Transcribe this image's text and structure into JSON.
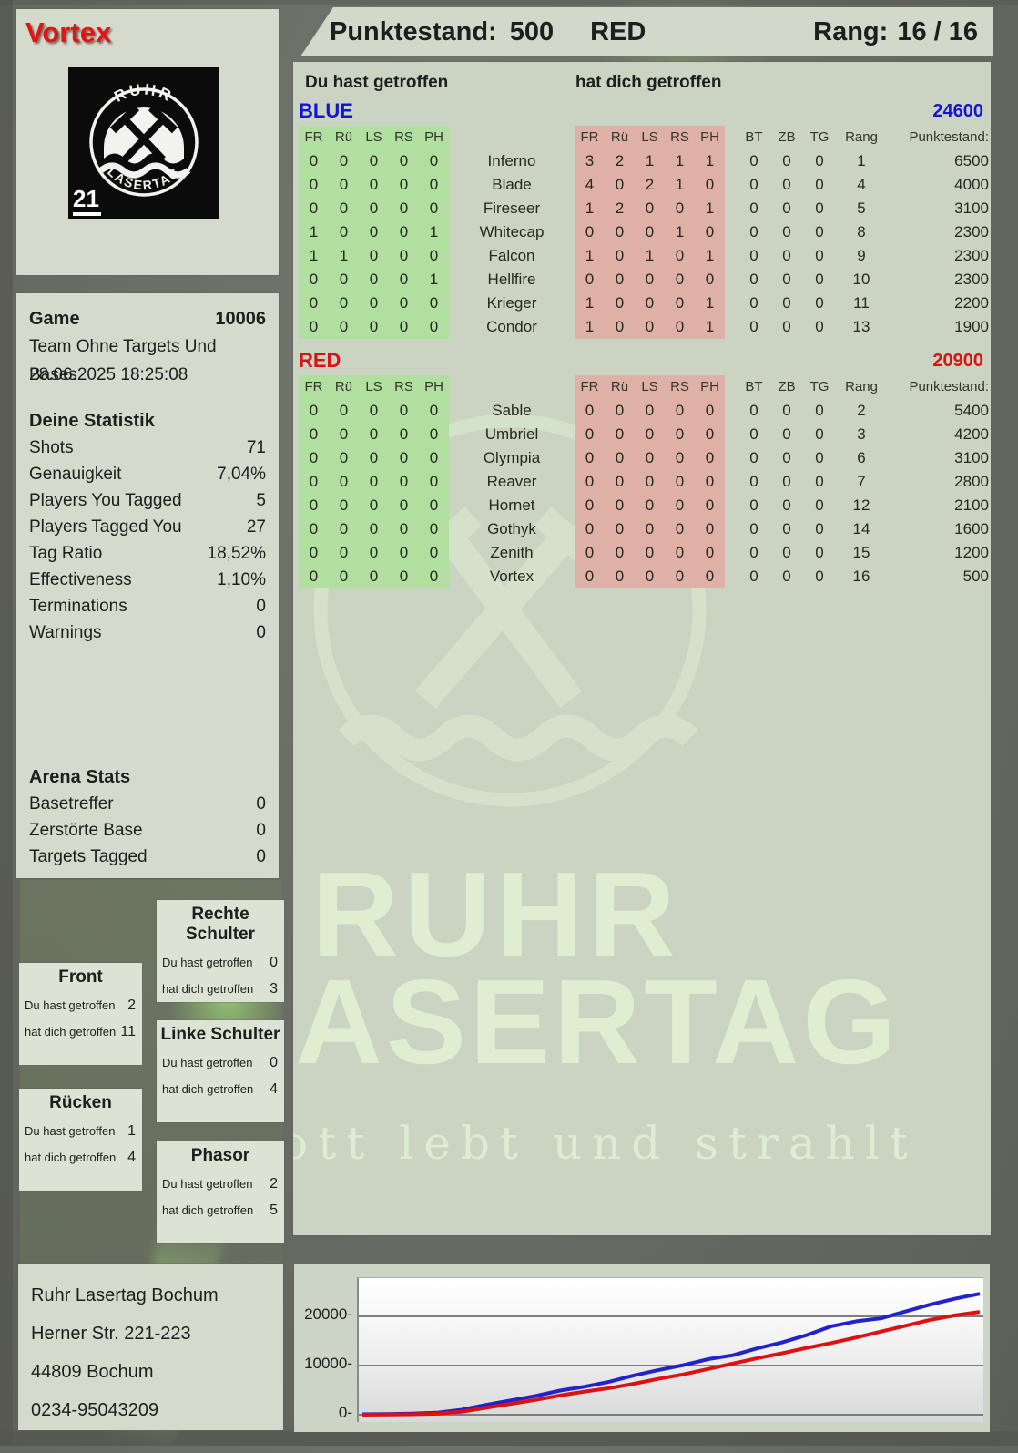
{
  "player": {
    "name": "Vortex",
    "badge": "21",
    "logo": {
      "top_text": "RUHR",
      "bottom_text": "LASERTAG"
    }
  },
  "header": {
    "score_label": "Punktestand:",
    "score_value": "500",
    "team": "RED",
    "rank_label": "Rang:",
    "rank_value": "16 / 16"
  },
  "scoreboard": {
    "you_hit_label": "Du hast getroffen",
    "hit_you_label": "hat dich getroffen",
    "hit_columns": [
      "FR",
      "Rü",
      "LS",
      "RS",
      "PH"
    ],
    "extra_columns": [
      "BT",
      "ZB",
      "TG",
      "Rang",
      "Punktestand:"
    ],
    "teams": [
      {
        "name": "BLUE",
        "color": "#1414d6",
        "total": "24600",
        "rows": [
          {
            "player": "Inferno",
            "you_hit": [
              0,
              0,
              0,
              0,
              0
            ],
            "hit_you": [
              3,
              2,
              1,
              1,
              1
            ],
            "bt": 0,
            "zb": 0,
            "tg": 0,
            "rang": 1,
            "punkte": "6500"
          },
          {
            "player": "Blade",
            "you_hit": [
              0,
              0,
              0,
              0,
              0
            ],
            "hit_you": [
              4,
              0,
              2,
              1,
              0
            ],
            "bt": 0,
            "zb": 0,
            "tg": 0,
            "rang": 4,
            "punkte": "4000"
          },
          {
            "player": "Fireseer",
            "you_hit": [
              0,
              0,
              0,
              0,
              0
            ],
            "hit_you": [
              1,
              2,
              0,
              0,
              1
            ],
            "bt": 0,
            "zb": 0,
            "tg": 0,
            "rang": 5,
            "punkte": "3100"
          },
          {
            "player": "Whitecap",
            "you_hit": [
              1,
              0,
              0,
              0,
              1
            ],
            "hit_you": [
              0,
              0,
              0,
              1,
              0
            ],
            "bt": 0,
            "zb": 0,
            "tg": 0,
            "rang": 8,
            "punkte": "2300"
          },
          {
            "player": "Falcon",
            "you_hit": [
              1,
              1,
              0,
              0,
              0
            ],
            "hit_you": [
              1,
              0,
              1,
              0,
              1
            ],
            "bt": 0,
            "zb": 0,
            "tg": 0,
            "rang": 9,
            "punkte": "2300"
          },
          {
            "player": "Hellfire",
            "you_hit": [
              0,
              0,
              0,
              0,
              1
            ],
            "hit_you": [
              0,
              0,
              0,
              0,
              0
            ],
            "bt": 0,
            "zb": 0,
            "tg": 0,
            "rang": 10,
            "punkte": "2300"
          },
          {
            "player": "Krieger",
            "you_hit": [
              0,
              0,
              0,
              0,
              0
            ],
            "hit_you": [
              1,
              0,
              0,
              0,
              1
            ],
            "bt": 0,
            "zb": 0,
            "tg": 0,
            "rang": 11,
            "punkte": "2200"
          },
          {
            "player": "Condor",
            "you_hit": [
              0,
              0,
              0,
              0,
              0
            ],
            "hit_you": [
              1,
              0,
              0,
              0,
              1
            ],
            "bt": 0,
            "zb": 0,
            "tg": 0,
            "rang": 13,
            "punkte": "1900"
          }
        ]
      },
      {
        "name": "RED",
        "color": "#d61414",
        "total": "20900",
        "rows": [
          {
            "player": "Sable",
            "you_hit": [
              0,
              0,
              0,
              0,
              0
            ],
            "hit_you": [
              0,
              0,
              0,
              0,
              0
            ],
            "bt": 0,
            "zb": 0,
            "tg": 0,
            "rang": 2,
            "punkte": "5400"
          },
          {
            "player": "Umbriel",
            "you_hit": [
              0,
              0,
              0,
              0,
              0
            ],
            "hit_you": [
              0,
              0,
              0,
              0,
              0
            ],
            "bt": 0,
            "zb": 0,
            "tg": 0,
            "rang": 3,
            "punkte": "4200"
          },
          {
            "player": "Olympia",
            "you_hit": [
              0,
              0,
              0,
              0,
              0
            ],
            "hit_you": [
              0,
              0,
              0,
              0,
              0
            ],
            "bt": 0,
            "zb": 0,
            "tg": 0,
            "rang": 6,
            "punkte": "3100"
          },
          {
            "player": "Reaver",
            "you_hit": [
              0,
              0,
              0,
              0,
              0
            ],
            "hit_you": [
              0,
              0,
              0,
              0,
              0
            ],
            "bt": 0,
            "zb": 0,
            "tg": 0,
            "rang": 7,
            "punkte": "2800"
          },
          {
            "player": "Hornet",
            "you_hit": [
              0,
              0,
              0,
              0,
              0
            ],
            "hit_you": [
              0,
              0,
              0,
              0,
              0
            ],
            "bt": 0,
            "zb": 0,
            "tg": 0,
            "rang": 12,
            "punkte": "2100"
          },
          {
            "player": "Gothyk",
            "you_hit": [
              0,
              0,
              0,
              0,
              0
            ],
            "hit_you": [
              0,
              0,
              0,
              0,
              0
            ],
            "bt": 0,
            "zb": 0,
            "tg": 0,
            "rang": 14,
            "punkte": "1600"
          },
          {
            "player": "Zenith",
            "you_hit": [
              0,
              0,
              0,
              0,
              0
            ],
            "hit_you": [
              0,
              0,
              0,
              0,
              0
            ],
            "bt": 0,
            "zb": 0,
            "tg": 0,
            "rang": 15,
            "punkte": "1200"
          },
          {
            "player": "Vortex",
            "you_hit": [
              0,
              0,
              0,
              0,
              0
            ],
            "hit_you": [
              0,
              0,
              0,
              0,
              0
            ],
            "bt": 0,
            "zb": 0,
            "tg": 0,
            "rang": 16,
            "punkte": "500"
          }
        ]
      }
    ]
  },
  "sidebar": {
    "game_label": "Game",
    "game_value": "10006",
    "mode": "Team Ohne Targets Und Bases",
    "datetime": "28.06.2025 18:25:08",
    "stats_title": "Deine Statistik",
    "stats": [
      {
        "label": "Shots",
        "value": "71"
      },
      {
        "label": "Genauigkeit",
        "value": "7,04%"
      },
      {
        "label": "Players You Tagged",
        "value": "5"
      },
      {
        "label": "Players Tagged You",
        "value": "27"
      },
      {
        "label": "Tag Ratio",
        "value": "18,52%"
      },
      {
        "label": "Effectiveness",
        "value": "1,10%"
      },
      {
        "label": "Terminations",
        "value": "0"
      },
      {
        "label": "Warnings",
        "value": "0"
      }
    ],
    "arena_title": "Arena Stats",
    "arena": [
      {
        "label": "Basetreffer",
        "value": "0"
      },
      {
        "label": "Zerstörte Base",
        "value": "0"
      },
      {
        "label": "Targets Tagged",
        "value": "0"
      }
    ]
  },
  "body_parts": {
    "you_hit_label": "Du hast getroffen",
    "hit_you_label": "hat dich getroffen",
    "items": [
      {
        "key": "rechte",
        "title": "Rechte Schulter",
        "you_hit": "0",
        "hit_you": "3"
      },
      {
        "key": "front",
        "title": "Front",
        "you_hit": "2",
        "hit_you": "11"
      },
      {
        "key": "linke",
        "title": "Linke Schulter",
        "you_hit": "0",
        "hit_you": "4"
      },
      {
        "key": "ruecken",
        "title": "Rücken",
        "you_hit": "1",
        "hit_you": "4"
      },
      {
        "key": "phasor",
        "title": "Phasor",
        "you_hit": "2",
        "hit_you": "5"
      }
    ]
  },
  "address": {
    "lines": [
      "Ruhr Lasertag Bochum",
      "Herner Str. 221-223",
      "44809 Bochum",
      "0234-95043209"
    ]
  },
  "watermark": {
    "line1": "RUHR",
    "line2": "LASERTAG",
    "tagline": "Der Pott lebt und strahlt"
  },
  "chart_data": {
    "type": "line",
    "title": "",
    "xlabel": "",
    "ylabel": "",
    "yticks": [
      0,
      10000,
      20000
    ],
    "ylim": [
      0,
      27800
    ],
    "grid": true,
    "legend": "none",
    "series": [
      {
        "name": "BLUE",
        "color": "#2222cc",
        "values": [
          100,
          150,
          250,
          400,
          1000,
          2000,
          2900,
          3800,
          4900,
          5700,
          6700,
          8000,
          9100,
          10100,
          11300,
          12100,
          13500,
          14700,
          16200,
          18000,
          19000,
          19600,
          21000,
          22400,
          23600,
          24600
        ]
      },
      {
        "name": "RED",
        "color": "#dd1111",
        "values": [
          0,
          50,
          100,
          200,
          600,
          1400,
          2200,
          3000,
          3900,
          4700,
          5400,
          6300,
          7300,
          8200,
          9300,
          10400,
          11500,
          12500,
          13600,
          14600,
          15700,
          16900,
          18100,
          19300,
          20200,
          20900
        ]
      }
    ]
  }
}
